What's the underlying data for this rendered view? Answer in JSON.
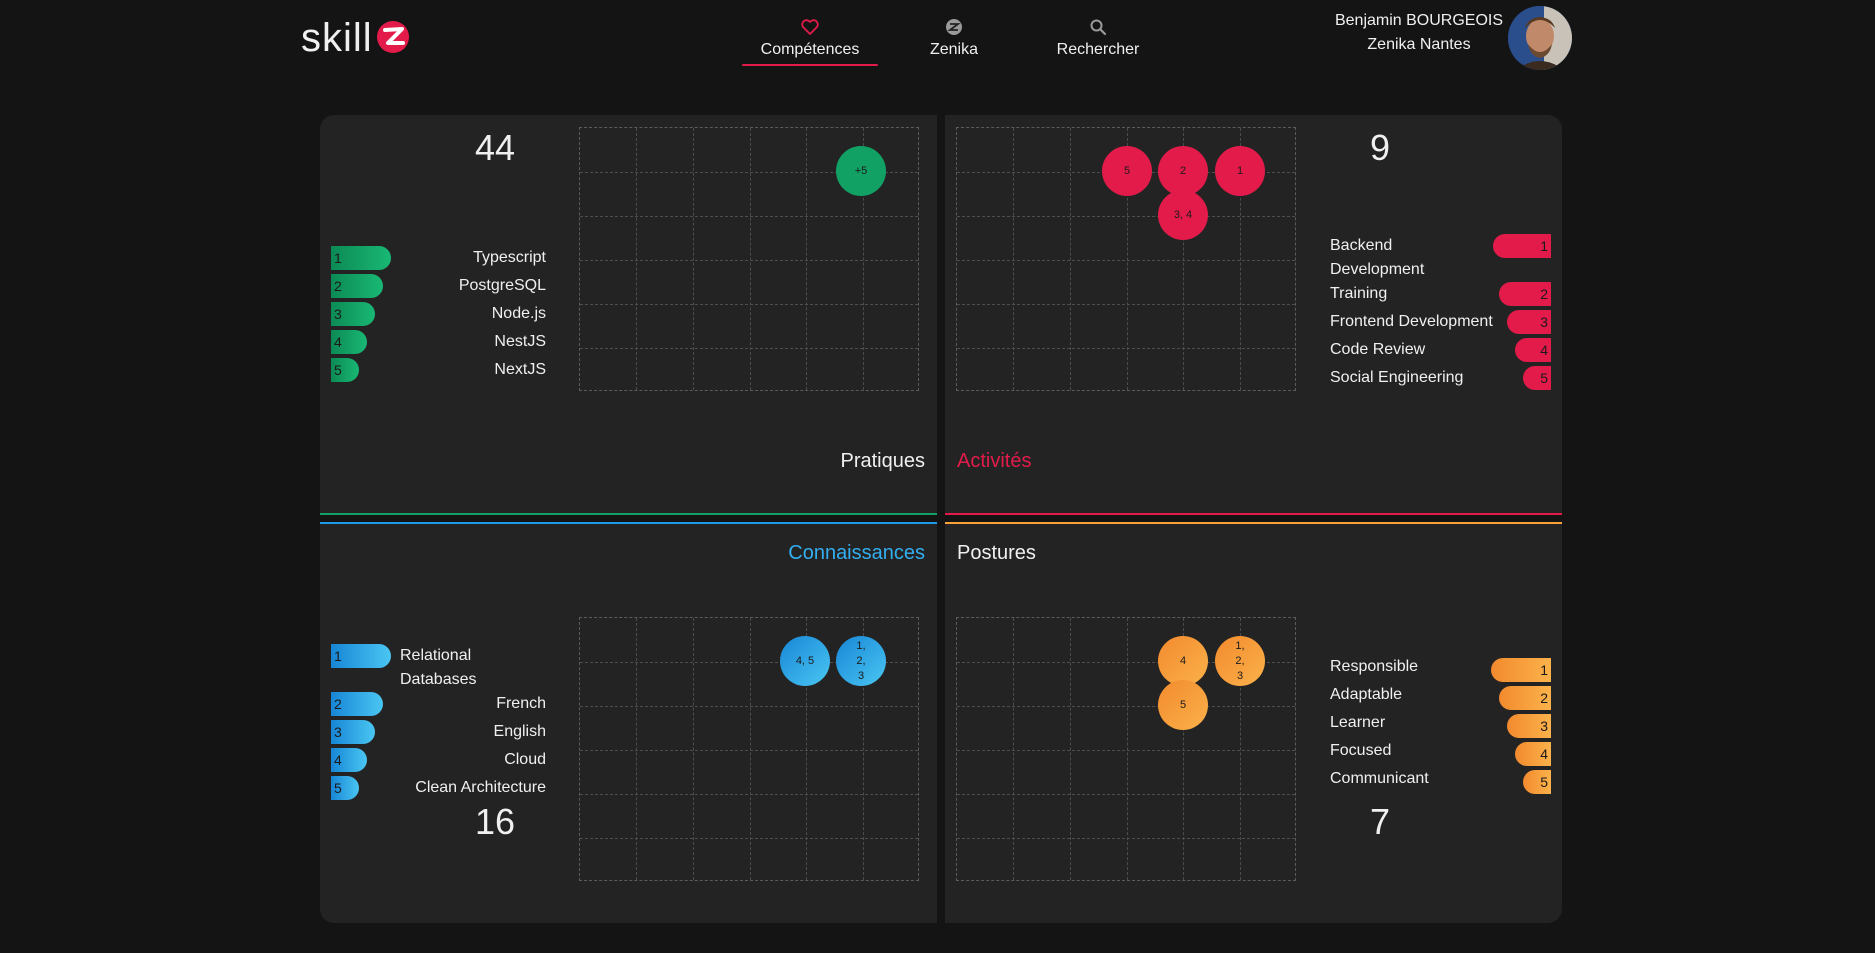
{
  "header": {
    "logo_text": "skill",
    "nav": [
      {
        "label": "Compétences",
        "icon": "heart-icon",
        "active": true
      },
      {
        "label": "Zenika",
        "icon": "zenika-logo-icon",
        "active": false
      },
      {
        "label": "Rechercher",
        "icon": "search-icon",
        "active": false
      }
    ],
    "user": {
      "name": "Benjamin BOURGEOIS",
      "agency": "Zenika Nantes"
    }
  },
  "colors": {
    "green": "#12a165",
    "pink": "#e31b4b",
    "blue": "#1e9be8",
    "orange": "#f7a13a"
  },
  "quadrants": {
    "pratiques": {
      "title": "Pratiques",
      "count": "44",
      "ranking": [
        {
          "rank": "1",
          "label": "Typescript"
        },
        {
          "rank": "2",
          "label": "PostgreSQL"
        },
        {
          "rank": "3",
          "label": "Node.js"
        },
        {
          "rank": "4",
          "label": "NestJS"
        },
        {
          "rank": "5",
          "label": "NextJS"
        }
      ],
      "bubbles": [
        {
          "text": "+5"
        }
      ]
    },
    "activites": {
      "title": "Activités",
      "count": "9",
      "ranking": [
        {
          "rank": "1",
          "label": "Backend Development"
        },
        {
          "rank": "2",
          "label": "Training"
        },
        {
          "rank": "3",
          "label": "Frontend Development"
        },
        {
          "rank": "4",
          "label": "Code Review"
        },
        {
          "rank": "5",
          "label": "Social Engineering"
        }
      ],
      "bubbles": [
        {
          "text": "5"
        },
        {
          "text": "2"
        },
        {
          "text": "1"
        },
        {
          "text": "3, 4"
        }
      ]
    },
    "connaissances": {
      "title": "Connaissances",
      "count": "16",
      "ranking": [
        {
          "rank": "1",
          "label": "Relational Databases"
        },
        {
          "rank": "2",
          "label": "French"
        },
        {
          "rank": "3",
          "label": "English"
        },
        {
          "rank": "4",
          "label": "Cloud"
        },
        {
          "rank": "5",
          "label": "Clean Architecture"
        }
      ],
      "bubbles": [
        {
          "text": "4, 5"
        },
        {
          "text": "1, 2, 3"
        }
      ]
    },
    "postures": {
      "title": "Postures",
      "count": "7",
      "ranking": [
        {
          "rank": "1",
          "label": "Responsible"
        },
        {
          "rank": "2",
          "label": "Adaptable"
        },
        {
          "rank": "3",
          "label": "Learner"
        },
        {
          "rank": "4",
          "label": "Focused"
        },
        {
          "rank": "5",
          "label": "Communicant"
        }
      ],
      "bubbles": [
        {
          "text": "4"
        },
        {
          "text": "1, 2, 3"
        },
        {
          "text": "5"
        }
      ]
    }
  }
}
